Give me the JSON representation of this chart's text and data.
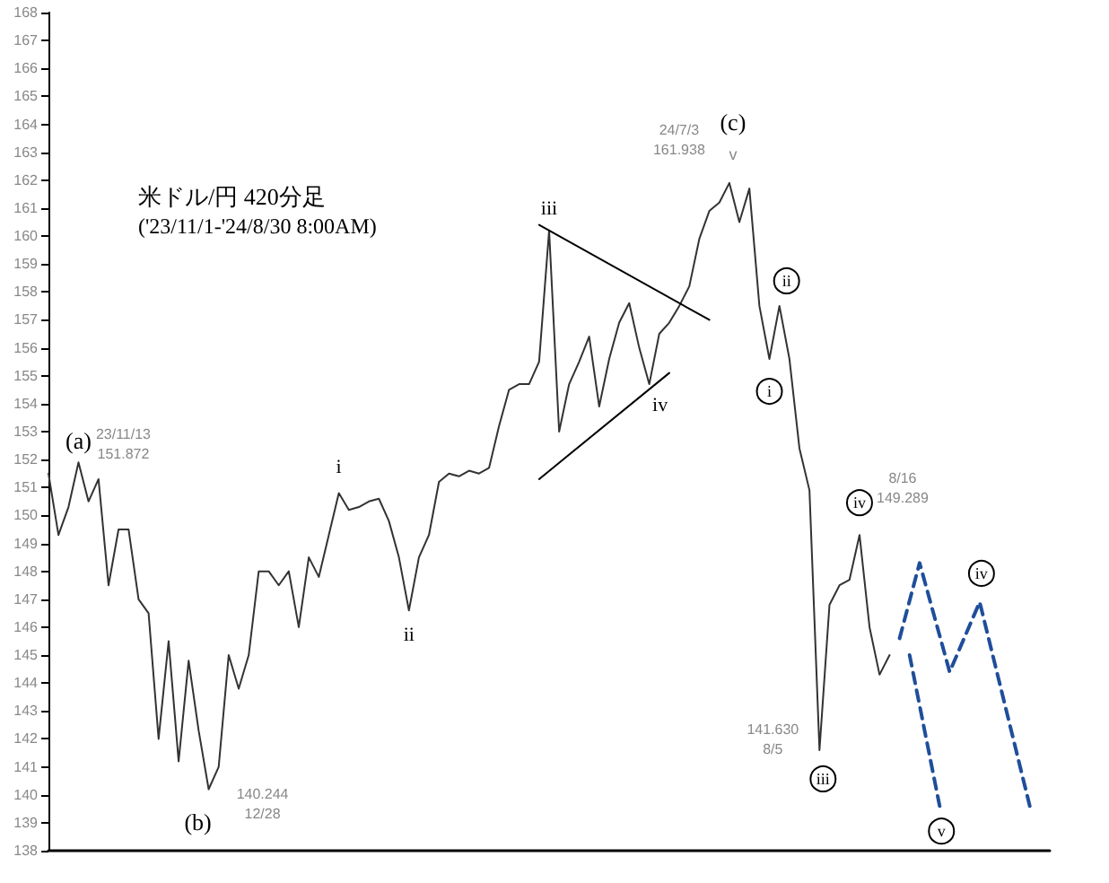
{
  "chart_data": {
    "type": "line",
    "title": "米ドル/円 420分足",
    "subtitle": "('23/11/1-'24/8/30 8:00AM)",
    "categories": [
      null,
      null,
      null,
      null,
      null,
      null,
      null,
      null,
      null,
      null,
      null,
      null,
      null,
      null,
      null,
      null,
      null,
      null,
      null,
      null,
      null,
      null,
      null,
      null,
      null,
      null,
      null,
      null,
      null,
      null,
      null,
      null,
      null,
      null,
      null,
      null,
      null,
      null,
      null,
      null,
      null,
      null,
      null,
      null,
      null,
      null,
      null,
      null,
      null,
      null,
      null,
      null,
      null,
      null,
      null,
      null,
      null,
      null,
      null,
      null,
      null,
      null,
      null,
      null,
      null,
      null,
      null,
      null,
      null,
      null,
      null,
      null,
      null,
      null,
      null,
      null,
      null,
      null,
      null,
      null,
      null,
      null,
      null,
      null,
      null,
      null,
      null,
      null,
      null,
      null,
      null,
      null,
      null,
      null,
      null,
      null,
      null,
      null,
      null,
      null,
      null
    ],
    "ylim": [
      138,
      168
    ],
    "yticks": [
      138,
      139,
      140,
      141,
      142,
      143,
      144,
      145,
      146,
      147,
      148,
      149,
      150,
      151,
      152,
      153,
      154,
      155,
      156,
      157,
      158,
      159,
      160,
      161,
      162,
      163,
      164,
      165,
      166,
      167,
      168
    ],
    "tick_labels": "y",
    "grid": false,
    "series": [
      {
        "color": "#333333",
        "line_style": "solid",
        "values": [
          151.5,
          149.3,
          150.3,
          151.9,
          150.5,
          151.3,
          147.5,
          149.5,
          149.5,
          147.0,
          146.5,
          142.0,
          145.5,
          141.2,
          144.8,
          142.3,
          140.2,
          141.0,
          145.0,
          143.8,
          145.0,
          148.0,
          148.0,
          147.5,
          148.0,
          146.0,
          148.5,
          147.8,
          149.3,
          150.8,
          150.2,
          150.3,
          150.5,
          150.6,
          149.8,
          148.5,
          146.6,
          148.5,
          149.3,
          151.2,
          151.5,
          151.4,
          151.6,
          151.5,
          151.7,
          153.2,
          154.5,
          154.7,
          154.7,
          155.5,
          160.2,
          153.0,
          154.7,
          155.5,
          156.4,
          153.9,
          155.6,
          156.9,
          157.6,
          156.0,
          154.7,
          156.5,
          156.9,
          157.5,
          158.2,
          159.9,
          160.9,
          161.2,
          161.9,
          160.5,
          161.7,
          157.5,
          155.6,
          157.5,
          155.6,
          152.4,
          150.9,
          141.6,
          146.8,
          147.5,
          147.7,
          149.3,
          146.0,
          144.3,
          145.0,
          null,
          null,
          null,
          null,
          null,
          null,
          null,
          null,
          null,
          null,
          null,
          null,
          null,
          null,
          null,
          null
        ]
      },
      {
        "color": "#1f4e9a",
        "line_style": "dashed",
        "values": [
          null,
          null,
          null,
          null,
          null,
          null,
          null,
          null,
          null,
          null,
          null,
          null,
          null,
          null,
          null,
          null,
          null,
          null,
          null,
          null,
          null,
          null,
          null,
          null,
          null,
          null,
          null,
          null,
          null,
          null,
          null,
          null,
          null,
          null,
          null,
          null,
          null,
          null,
          null,
          null,
          null,
          null,
          null,
          null,
          null,
          null,
          null,
          null,
          null,
          null,
          null,
          null,
          null,
          null,
          null,
          null,
          null,
          null,
          null,
          null,
          null,
          null,
          null,
          null,
          null,
          null,
          null,
          null,
          null,
          null,
          null,
          null,
          null,
          null,
          null,
          null,
          null,
          null,
          null,
          null,
          null,
          null,
          null,
          null,
          null,
          145.6,
          null,
          148.3,
          null,
          null,
          144.4,
          null,
          null,
          146.9,
          null,
          null,
          null,
          null,
          139.6,
          null,
          null
        ]
      },
      {
        "color": "#1f4e9a",
        "line_style": "dashed",
        "values": [
          null,
          null,
          null,
          null,
          null,
          null,
          null,
          null,
          null,
          null,
          null,
          null,
          null,
          null,
          null,
          null,
          null,
          null,
          null,
          null,
          null,
          null,
          null,
          null,
          null,
          null,
          null,
          null,
          null,
          null,
          null,
          null,
          null,
          null,
          null,
          null,
          null,
          null,
          null,
          null,
          null,
          null,
          null,
          null,
          null,
          null,
          null,
          null,
          null,
          null,
          null,
          null,
          null,
          null,
          null,
          null,
          null,
          null,
          null,
          null,
          null,
          null,
          null,
          null,
          null,
          null,
          null,
          null,
          null,
          null,
          null,
          null,
          null,
          null,
          null,
          null,
          null,
          null,
          null,
          null,
          null,
          null,
          null,
          null,
          null,
          null,
          145.0,
          null,
          null,
          139.6,
          null,
          null,
          null,
          null,
          null,
          null,
          null,
          null,
          null,
          null,
          null
        ]
      },
      {
        "color": "#000000",
        "line_style": "solid",
        "values": [
          null,
          null,
          null,
          null,
          null,
          null,
          null,
          null,
          null,
          null,
          null,
          null,
          null,
          null,
          null,
          null,
          null,
          null,
          null,
          null,
          null,
          null,
          null,
          null,
          null,
          null,
          null,
          null,
          null,
          null,
          null,
          null,
          null,
          null,
          null,
          null,
          null,
          null,
          null,
          null,
          null,
          null,
          null,
          null,
          null,
          null,
          null,
          null,
          null,
          160.4,
          null,
          null,
          null,
          null,
          null,
          null,
          null,
          null,
          null,
          null,
          null,
          null,
          null,
          null,
          null,
          null,
          157.0,
          null,
          null,
          null,
          null,
          null,
          null,
          null,
          null,
          null,
          null,
          null,
          null,
          null,
          null,
          null,
          null,
          null,
          null,
          null,
          null,
          null,
          null,
          null,
          null,
          null,
          null,
          null,
          null,
          null,
          null,
          null,
          null,
          null,
          null
        ]
      },
      {
        "color": "#000000",
        "line_style": "solid",
        "values": [
          null,
          null,
          null,
          null,
          null,
          null,
          null,
          null,
          null,
          null,
          null,
          null,
          null,
          null,
          null,
          null,
          null,
          null,
          null,
          null,
          null,
          null,
          null,
          null,
          null,
          null,
          null,
          null,
          null,
          null,
          null,
          null,
          null,
          null,
          null,
          null,
          null,
          null,
          null,
          null,
          null,
          null,
          null,
          null,
          null,
          null,
          null,
          null,
          null,
          151.3,
          null,
          null,
          null,
          null,
          null,
          null,
          null,
          null,
          null,
          null,
          null,
          null,
          155.1,
          null,
          null,
          null,
          null,
          null,
          null,
          null,
          null,
          null,
          null,
          null,
          null,
          null,
          null,
          null,
          null,
          null,
          null,
          null,
          null,
          null,
          null,
          null,
          null,
          null,
          null,
          null,
          null,
          null,
          null,
          null,
          null,
          null,
          null,
          null,
          null,
          null,
          null
        ]
      }
    ],
    "annotations": [
      "(a)",
      "23/11/13\n151.872",
      "(b)",
      "140.244\n12/28",
      "(c)",
      "v",
      "24/7/3\n161.938",
      "i",
      "ii",
      "iii",
      "iv",
      "i",
      "ii",
      "iii",
      "141.630\n8/5",
      "iv",
      "8/16\n149.289",
      "iv",
      "v"
    ]
  }
}
